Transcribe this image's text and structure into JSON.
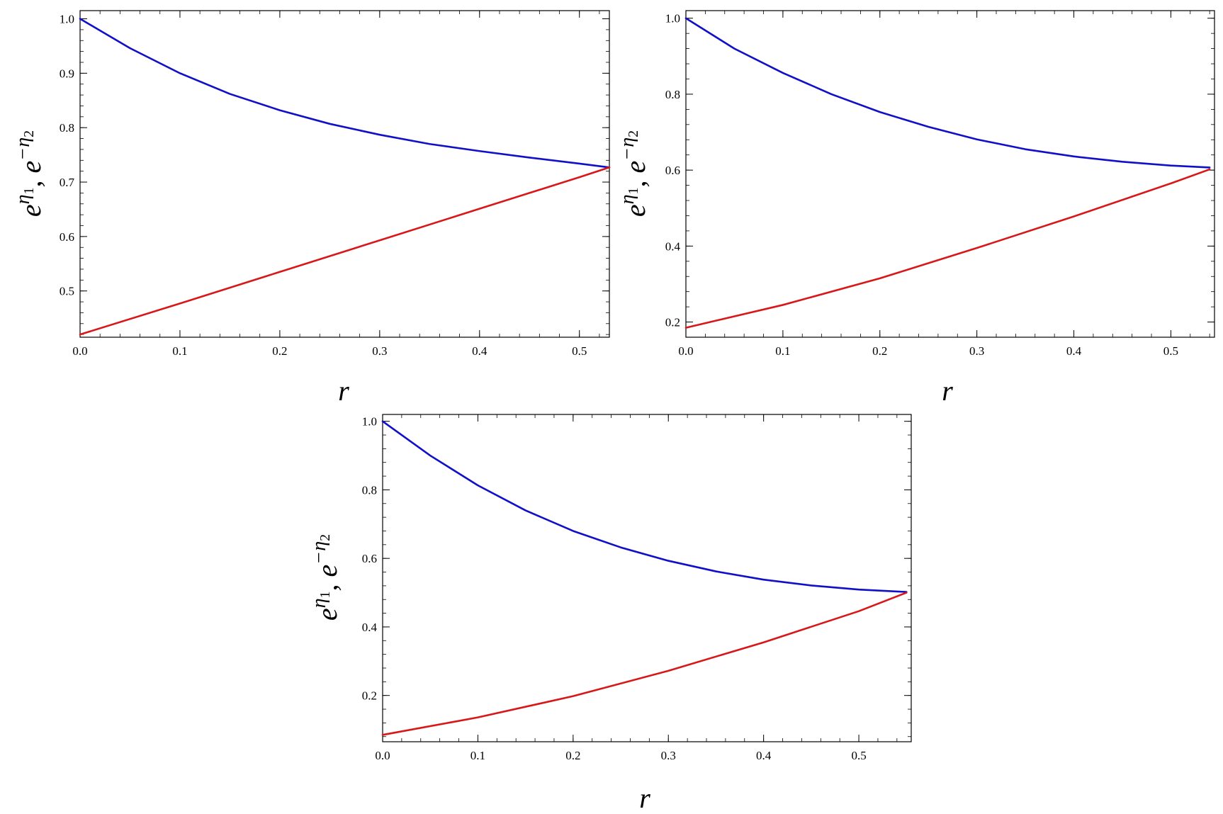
{
  "chart_data": [
    {
      "type": "line",
      "xlabel": "r",
      "ylabel": {
        "part1_base": "e",
        "part1_sup": "η",
        "part1_sub": "1",
        "separator": ", ",
        "part2_base": "e",
        "part2_sup": "−η",
        "part2_sub": "2"
      },
      "xlim": [
        0,
        0.53
      ],
      "ylim": [
        0.415,
        1.015
      ],
      "x_ticks": [
        0.0,
        0.1,
        0.2,
        0.3,
        0.4,
        0.5
      ],
      "x_tick_labels": [
        "0.0",
        "0.1",
        "0.2",
        "0.3",
        "0.4",
        "0.5"
      ],
      "y_ticks": [
        0.5,
        0.6,
        0.7,
        0.8,
        0.9,
        1.0
      ],
      "y_tick_labels": [
        "0.5",
        "0.6",
        "0.7",
        "0.8",
        "0.9",
        "1.0"
      ],
      "grid": false,
      "series": [
        {
          "color": "#1010c8",
          "x": [
            0.0,
            0.05,
            0.1,
            0.15,
            0.2,
            0.25,
            0.3,
            0.35,
            0.4,
            0.45,
            0.5,
            0.53
          ],
          "y": [
            1.0,
            0.946,
            0.9,
            0.862,
            0.832,
            0.807,
            0.787,
            0.77,
            0.757,
            0.745,
            0.734,
            0.727
          ]
        },
        {
          "color": "#d81818",
          "x": [
            0.0,
            0.1,
            0.2,
            0.3,
            0.4,
            0.5,
            0.53
          ],
          "y": [
            0.42,
            0.477,
            0.535,
            0.593,
            0.651,
            0.709,
            0.727
          ]
        }
      ]
    },
    {
      "type": "line",
      "xlabel": "r",
      "ylabel": {
        "part1_base": "e",
        "part1_sup": "η",
        "part1_sub": "1",
        "separator": ", ",
        "part2_base": "e",
        "part2_sup": "−η",
        "part2_sub": "2"
      },
      "xlim": [
        0,
        0.545
      ],
      "ylim": [
        0.16,
        1.02
      ],
      "x_ticks": [
        0.0,
        0.1,
        0.2,
        0.3,
        0.4,
        0.5
      ],
      "x_tick_labels": [
        "0.0",
        "0.1",
        "0.2",
        "0.3",
        "0.4",
        "0.5"
      ],
      "y_ticks": [
        0.2,
        0.4,
        0.6,
        0.8,
        1.0
      ],
      "y_tick_labels": [
        "0.2",
        "0.4",
        "0.6",
        "0.8",
        "1.0"
      ],
      "grid": false,
      "series": [
        {
          "color": "#1010c8",
          "x": [
            0.0,
            0.05,
            0.1,
            0.15,
            0.2,
            0.25,
            0.3,
            0.35,
            0.4,
            0.45,
            0.5,
            0.54
          ],
          "y": [
            1.0,
            0.92,
            0.856,
            0.8,
            0.753,
            0.714,
            0.681,
            0.655,
            0.636,
            0.622,
            0.612,
            0.607
          ]
        },
        {
          "color": "#d81818",
          "x": [
            0.0,
            0.1,
            0.2,
            0.3,
            0.4,
            0.5,
            0.54
          ],
          "y": [
            0.185,
            0.245,
            0.315,
            0.395,
            0.478,
            0.565,
            0.602
          ]
        }
      ]
    },
    {
      "type": "line",
      "xlabel": "r",
      "ylabel": {
        "part1_base": "e",
        "part1_sup": "η",
        "part1_sub": "1",
        "separator": ", ",
        "part2_base": "e",
        "part2_sup": "−η",
        "part2_sub": "2"
      },
      "xlim": [
        0,
        0.555
      ],
      "ylim": [
        0.065,
        1.02
      ],
      "x_ticks": [
        0.0,
        0.1,
        0.2,
        0.3,
        0.4,
        0.5
      ],
      "x_tick_labels": [
        "0.0",
        "0.1",
        "0.2",
        "0.3",
        "0.4",
        "0.5"
      ],
      "y_ticks": [
        0.2,
        0.4,
        0.6,
        0.8,
        1.0
      ],
      "y_tick_labels": [
        "0.2",
        "0.4",
        "0.6",
        "0.8",
        "1.0"
      ],
      "grid": false,
      "series": [
        {
          "color": "#1010c8",
          "x": [
            0.0,
            0.05,
            0.1,
            0.15,
            0.2,
            0.25,
            0.3,
            0.35,
            0.4,
            0.45,
            0.5,
            0.55
          ],
          "y": [
            1.0,
            0.9,
            0.813,
            0.74,
            0.68,
            0.632,
            0.593,
            0.562,
            0.538,
            0.521,
            0.509,
            0.502
          ]
        },
        {
          "color": "#d81818",
          "x": [
            0.0,
            0.1,
            0.2,
            0.3,
            0.4,
            0.5,
            0.55
          ],
          "y": [
            0.085,
            0.136,
            0.198,
            0.272,
            0.355,
            0.446,
            0.5
          ]
        }
      ]
    }
  ]
}
